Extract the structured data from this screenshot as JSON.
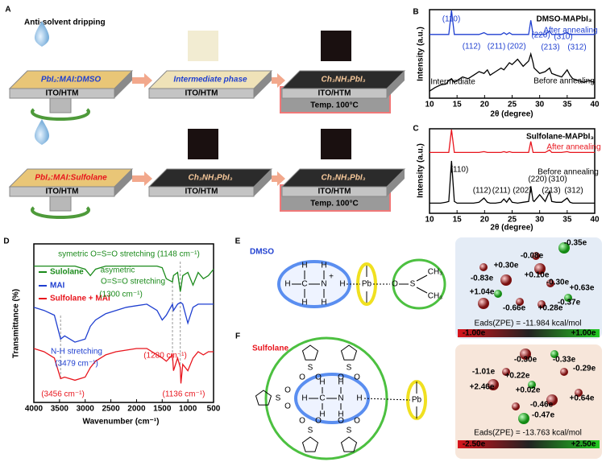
{
  "panel_labels": [
    "A",
    "B",
    "C",
    "D",
    "E",
    "F"
  ],
  "panel_a": {
    "title": "Anti-solvent dripping",
    "substrates": [
      {
        "film": "PbI₂:MAI:DMSO",
        "base": "ITO/HTM"
      },
      {
        "film": "Intermediate phase",
        "base": "ITO/HTM"
      },
      {
        "film": "Ch₃NH₃PbI₃",
        "base": "ITO/HTM",
        "temp": "Temp. 100°C"
      },
      {
        "film": "PbI₂:MAI:Sulfolane",
        "base": "ITO/HTM"
      },
      {
        "film": "Ch₃NH₃PbI₃",
        "base": "ITO/HTM"
      },
      {
        "film": "Ch₃NH₃PbI₃",
        "base": "ITO/HTM",
        "temp": "Temp. 100°C"
      }
    ]
  },
  "chart_data": [
    {
      "type": "line",
      "x_label": "2θ (degree)",
      "y_label": "Intensity (a.u.)",
      "x": [
        10,
        11,
        12,
        13,
        13.5,
        14,
        14.5,
        15,
        16,
        17,
        18,
        19,
        19.9,
        20.5,
        21,
        22,
        23,
        23.5,
        24,
        24.5,
        25,
        26,
        27,
        28,
        28.4,
        28.8,
        29,
        30,
        31,
        31.8,
        32.2,
        33,
        34,
        35,
        35.5,
        36,
        37,
        38,
        39,
        40
      ],
      "xlim": [
        10,
        40
      ],
      "xticks": [
        10,
        15,
        20,
        25,
        30,
        35,
        40
      ],
      "ylim": [
        0,
        100
      ],
      "series": [
        {
          "name": "After annealing",
          "color": "#1f3fd0",
          "values": [
            72,
            72,
            72,
            72,
            72,
            99,
            72,
            72,
            72,
            72,
            72,
            72,
            74,
            72,
            72,
            72,
            72,
            74,
            72,
            74,
            72,
            72,
            72,
            72,
            88,
            72,
            72,
            72,
            72,
            76,
            72,
            72,
            72,
            74,
            72,
            72,
            72,
            72,
            72,
            72
          ]
        },
        {
          "name": "Before annealing",
          "color": "#000000",
          "values": [
            8,
            12,
            15,
            16,
            20,
            22,
            18,
            20,
            24,
            22,
            26,
            30,
            28,
            32,
            26,
            30,
            34,
            32,
            36,
            40,
            38,
            44,
            36,
            42,
            50,
            40,
            34,
            28,
            30,
            34,
            28,
            26,
            24,
            32,
            26,
            22,
            20,
            18,
            20,
            18
          ]
        }
      ],
      "annotations": [
        "(110)",
        "DMSO-MAPbI₃",
        "(112)",
        "(211)",
        "(202)",
        "(220)",
        "(310)",
        "(213)",
        "(312)",
        "Intermediate"
      ]
    },
    {
      "type": "line",
      "x_label": "2θ (degree)",
      "y_label": "Intensity (a.u.)",
      "x": [
        10,
        11,
        12,
        13,
        13.5,
        14,
        14.5,
        15,
        16,
        17,
        18,
        19,
        19.9,
        20.5,
        21,
        22,
        23,
        23.5,
        24,
        24.5,
        25,
        26,
        27,
        28,
        28.4,
        28.8,
        29,
        30,
        31,
        31.8,
        32.2,
        33,
        34,
        35,
        35.5,
        36,
        37,
        38,
        39,
        40
      ],
      "xlim": [
        10,
        40
      ],
      "xticks": [
        10,
        15,
        20,
        25,
        30,
        35,
        40
      ],
      "ylim": [
        0,
        100
      ],
      "series": [
        {
          "name": "After annealing",
          "color": "#e8141c",
          "values": [
            72,
            72,
            72,
            72,
            72,
            99,
            72,
            72,
            72,
            72,
            72,
            72,
            73,
            72,
            72,
            72,
            72,
            73,
            72,
            73,
            72,
            72,
            72,
            72,
            85,
            72,
            72,
            72,
            72,
            75,
            72,
            72,
            72,
            73,
            72,
            72,
            72,
            72,
            72,
            72
          ]
        },
        {
          "name": "Before annealing",
          "color": "#000000",
          "values": [
            12,
            12,
            12,
            13,
            14,
            62,
            14,
            12,
            12,
            12,
            12,
            13,
            18,
            13,
            12,
            12,
            13,
            17,
            13,
            18,
            13,
            12,
            13,
            14,
            32,
            15,
            14,
            22,
            14,
            26,
            14,
            13,
            13,
            18,
            13,
            12,
            12,
            12,
            12,
            12
          ]
        }
      ],
      "annotations": [
        "Sulfolane-MAPbI₃",
        "(110)",
        "(112)",
        "(211)",
        "(202)",
        "(220)",
        "(310)",
        "(213)",
        "(312)"
      ]
    },
    {
      "type": "line",
      "x_label": "Wavenumber (cm⁻¹)",
      "y_label": "Transmittance (%)",
      "x": [
        4000,
        3800,
        3600,
        3479,
        3400,
        3200,
        3000,
        2900,
        2800,
        2600,
        2400,
        2200,
        2000,
        1800,
        1600,
        1500,
        1420,
        1300,
        1280,
        1200,
        1148,
        1136,
        1100,
        1000,
        900,
        800,
        700,
        600,
        500
      ],
      "xlim": [
        4000,
        500
      ],
      "xticks": [
        4000,
        3500,
        3000,
        2500,
        2000,
        1500,
        1000,
        500
      ],
      "ylim": [
        0,
        100
      ],
      "series": [
        {
          "name": "Sulolane",
          "color": "#1a8a1a",
          "values": [
            86,
            86,
            86,
            86,
            86,
            86,
            84,
            80,
            84,
            86,
            86,
            86,
            86,
            86,
            86,
            85,
            78,
            76,
            80,
            82,
            70,
            72,
            80,
            82,
            74,
            82,
            78,
            80,
            84
          ]
        },
        {
          "name": "MAI",
          "color": "#1f3fd0",
          "values": [
            60,
            58,
            55,
            40,
            42,
            38,
            40,
            48,
            52,
            56,
            58,
            60,
            61,
            62,
            58,
            52,
            55,
            62,
            58,
            62,
            63,
            63,
            62,
            50,
            60,
            62,
            62,
            62,
            62
          ]
        },
        {
          "name": "Sulfolane + MAI",
          "color": "#e8141c",
          "values": [
            34,
            32,
            28,
            15,
            16,
            14,
            16,
            22,
            26,
            30,
            32,
            33,
            34,
            34,
            30,
            28,
            26,
            30,
            20,
            28,
            22,
            12,
            24,
            20,
            28,
            32,
            30,
            32,
            32
          ]
        }
      ],
      "annotations": [
        "symetric O=S=O stretching (1148 cm⁻¹)",
        "asymetric",
        "O=S=O stretching",
        "(1300 cm⁻¹)",
        "N-H stretching",
        "(3479 cm⁻¹)",
        "(1280 cm⁻¹)",
        "(3456 cm⁻¹)",
        "(1136 cm⁻¹)"
      ]
    }
  ],
  "panel_e": {
    "title": "DMSO",
    "atoms": [
      "H",
      "C",
      "N",
      "H",
      "H",
      "H",
      "H",
      "H",
      "+",
      "Pb",
      "O",
      "S",
      "CH₃",
      "CH₃"
    ],
    "charges": [
      "-0.35e",
      "-0.08e",
      "+0.30e",
      "+0.10e",
      "-0.83e",
      "-0.30e",
      "+0.63e",
      "+1.04e",
      "-0.37e",
      "-0.66e",
      "+0.28e"
    ],
    "energy": "Eads(ZPE) = -11.984 kcal/mol",
    "scale": [
      "-1.00e",
      "+1.00e"
    ]
  },
  "panel_f": {
    "title": "Sulfolane",
    "atoms": [
      "H",
      "C",
      "N",
      "H",
      "H",
      "H",
      "H",
      "H",
      "Pb",
      "S",
      "O",
      "O",
      "S",
      "O",
      "O",
      "S",
      "O",
      "O",
      "S",
      "O",
      "O",
      "S",
      "O",
      "O"
    ],
    "charges": [
      "-0.30e",
      "-0.33e",
      "-1.01e",
      "+0.22e",
      "-0.29e",
      "+2.46e",
      "+0.02e",
      "-0.46e",
      "+0.64e",
      "-0.47e"
    ],
    "energy": "Eads(ZPE) = -13.763 kcal/mol",
    "scale": [
      "-2.50e",
      "+2.50e"
    ]
  }
}
